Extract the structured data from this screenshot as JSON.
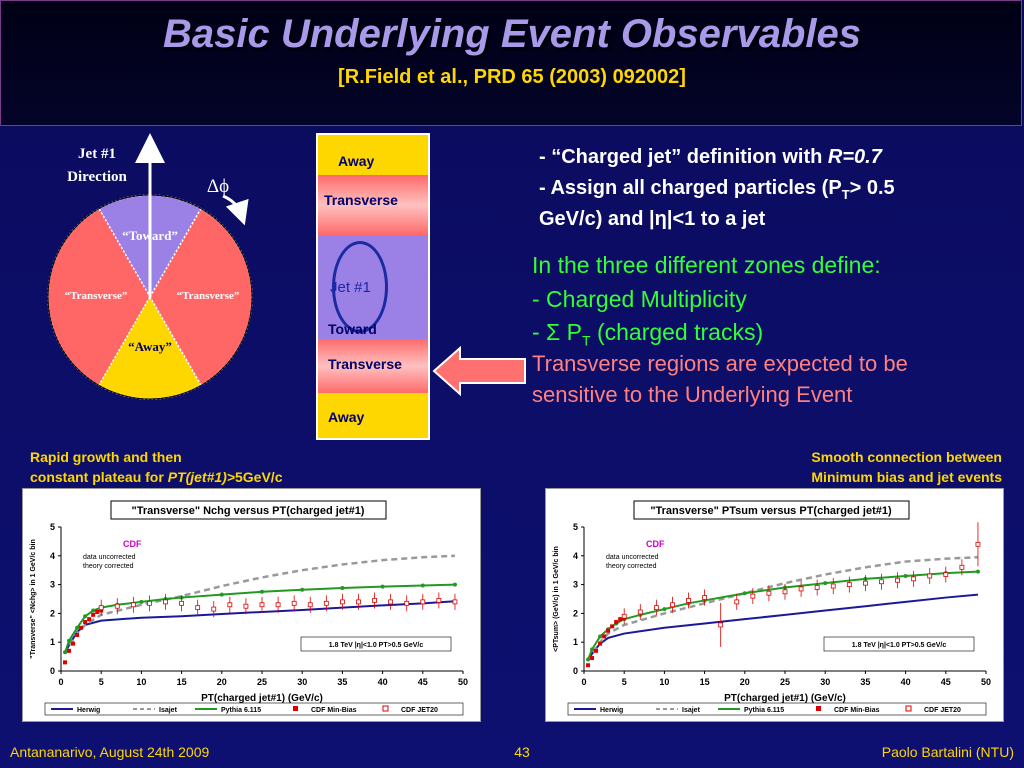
{
  "slide": {
    "title": "Basic Underlying Event Observables",
    "subtitle": "[R.Field et al., PRD 65 (2003) 092002]"
  },
  "diagram": {
    "jet_label_1": "Jet #1",
    "jet_label_2": "Direction",
    "dphi": "Δϕ",
    "toward": "“Toward”",
    "transverse_left": "“Transverse”",
    "transverse_right": "“Transverse”",
    "away": "“Away”",
    "colors": {
      "toward": "#9b80e6",
      "transverse": "#ff6666",
      "away": "#ffd700"
    }
  },
  "zones": {
    "away_top": "Away",
    "transverse_top": "Transverse",
    "jet": "Jet #1",
    "toward": "Toward",
    "transverse_bottom": "Transverse",
    "away_bottom": "Away"
  },
  "bullets": {
    "b1_prefix": "- “Charged jet” definition with ",
    "b1_italic": "R=0.7",
    "b2_line1_a": "- Assign all charged particles (P",
    "b2_line1_sub": "T",
    "b2_line1_b": "> 0.5",
    "b2_line2": "GeV/c) and |η|<1  to a jet"
  },
  "zones_text": {
    "line1": "In the three different zones define:",
    "line2": "- Charged Multiplicity",
    "line3_a": "- Σ P",
    "line3_sub": "T",
    "line3_b": " (charged tracks)",
    "line4": "Transverse regions are expected to be",
    "line5": "sensitive to the Underlying Event"
  },
  "captions": {
    "left_1": "Rapid growth and then",
    "left_2a": "constant plateau for ",
    "left_2b": "PT(jet#1)>",
    "left_2c": "5GeV/c",
    "right_1": "Smooth connection between",
    "right_2": "Minimum bias and jet events"
  },
  "footer": {
    "left": "Antananarivo, August 24th 2009",
    "page": "43",
    "right": "Paolo Bartalini (NTU)"
  },
  "chart_data": [
    {
      "type": "line",
      "title": "\"Transverse\" Nchg versus PT(charged jet#1)",
      "xlabel": "PT(charged jet#1)  (GeV/c)",
      "ylabel": "\"Transverse\" <Nchg> in 1 GeV/c bin",
      "xlim": [
        0,
        50
      ],
      "ylim": [
        0,
        5
      ],
      "xticks": [
        0,
        5,
        10,
        15,
        20,
        25,
        30,
        35,
        40,
        45,
        50
      ],
      "yticks": [
        0,
        1,
        2,
        3,
        4,
        5
      ],
      "annotations": [
        "CDF",
        "data uncorrected",
        "theory corrected",
        "1.8 TeV |η|<1.0 PT>0.5 GeV/c"
      ],
      "legend": "bottom",
      "series": [
        {
          "name": "Herwig",
          "color": "#1a1a99",
          "style": "solid",
          "x": [
            0.5,
            1,
            2,
            3,
            5,
            10,
            15,
            20,
            25,
            30,
            35,
            40,
            45,
            49
          ],
          "y": [
            0.6,
            0.9,
            1.35,
            1.6,
            1.75,
            1.85,
            1.9,
            1.98,
            2.05,
            2.12,
            2.2,
            2.28,
            2.35,
            2.42
          ]
        },
        {
          "name": "Isajet",
          "color": "#999999",
          "style": "dashed",
          "x": [
            0.5,
            1,
            2,
            3,
            5,
            10,
            15,
            20,
            25,
            30,
            35,
            40,
            45,
            49
          ],
          "y": [
            0.6,
            0.85,
            1.3,
            1.6,
            1.95,
            2.3,
            2.6,
            2.95,
            3.25,
            3.5,
            3.7,
            3.85,
            3.95,
            4.0
          ]
        },
        {
          "name": "Pythia 6.115",
          "color": "#229922",
          "style": "solid-dots",
          "x": [
            0.5,
            1,
            2,
            3,
            4,
            5,
            7,
            10,
            13,
            15,
            20,
            25,
            30,
            35,
            40,
            45,
            49
          ],
          "y": [
            0.65,
            1.05,
            1.5,
            1.9,
            2.1,
            2.2,
            2.3,
            2.4,
            2.5,
            2.55,
            2.65,
            2.75,
            2.82,
            2.88,
            2.93,
            2.97,
            3.0
          ]
        },
        {
          "name": "CDF Min-Bias",
          "color": "#dd0000",
          "style": "filled-square",
          "x": [
            0.5,
            1,
            1.5,
            2,
            2.5,
            3,
            3.5,
            4,
            4.5,
            5
          ],
          "y": [
            0.3,
            0.7,
            0.95,
            1.25,
            1.5,
            1.7,
            1.8,
            1.95,
            2.05,
            2.1
          ]
        },
        {
          "name": "CDF JET20",
          "color": "#dd0000",
          "style": "open-square",
          "x": [
            5,
            7,
            9,
            11,
            13,
            15,
            17,
            19,
            21,
            23,
            25,
            27,
            29,
            31,
            33,
            35,
            37,
            39,
            41,
            43,
            45,
            47,
            49
          ],
          "y": [
            2.2,
            2.25,
            2.3,
            2.35,
            2.4,
            2.35,
            2.2,
            2.15,
            2.3,
            2.25,
            2.3,
            2.3,
            2.35,
            2.3,
            2.35,
            2.4,
            2.4,
            2.45,
            2.4,
            2.35,
            2.4,
            2.45,
            2.4
          ]
        }
      ]
    },
    {
      "type": "line",
      "title": "\"Transverse\" PTsum versus PT(charged jet#1)",
      "xlabel": "PT(charged jet#1)  (GeV/c)",
      "ylabel": "<PTsum> (GeV/c) in 1 GeV/c bin",
      "xlim": [
        0,
        50
      ],
      "ylim": [
        0,
        5
      ],
      "xticks": [
        0,
        5,
        10,
        15,
        20,
        25,
        30,
        35,
        40,
        45,
        50
      ],
      "yticks": [
        0,
        1,
        2,
        3,
        4,
        5
      ],
      "annotations": [
        "CDF",
        "data uncorrected",
        "theory corrected",
        "1.8 TeV |η|<1.0 PT>0.5 GeV/c"
      ],
      "legend": "bottom",
      "series": [
        {
          "name": "Herwig",
          "color": "#1a1a99",
          "style": "solid",
          "x": [
            0.5,
            1,
            2,
            3,
            5,
            10,
            15,
            20,
            25,
            30,
            35,
            40,
            45,
            49
          ],
          "y": [
            0.35,
            0.6,
            0.95,
            1.15,
            1.3,
            1.5,
            1.65,
            1.8,
            1.95,
            2.1,
            2.25,
            2.4,
            2.55,
            2.65
          ]
        },
        {
          "name": "Isajet",
          "color": "#999999",
          "style": "dashed",
          "x": [
            0.5,
            1,
            2,
            3,
            5,
            10,
            15,
            20,
            25,
            30,
            35,
            40,
            45,
            49
          ],
          "y": [
            0.35,
            0.6,
            1.0,
            1.3,
            1.6,
            2.0,
            2.35,
            2.7,
            3.05,
            3.35,
            3.6,
            3.8,
            3.9,
            3.95
          ]
        },
        {
          "name": "Pythia 6.115",
          "color": "#229922",
          "style": "solid-dots",
          "x": [
            0.5,
            1,
            2,
            3,
            4,
            5,
            7,
            10,
            13,
            15,
            20,
            25,
            30,
            35,
            40,
            45,
            49
          ],
          "y": [
            0.4,
            0.75,
            1.2,
            1.45,
            1.65,
            1.8,
            1.95,
            2.15,
            2.35,
            2.45,
            2.7,
            2.9,
            3.05,
            3.2,
            3.3,
            3.4,
            3.45
          ]
        },
        {
          "name": "CDF Min-Bias",
          "color": "#dd0000",
          "style": "filled-square",
          "x": [
            0.5,
            1,
            1.5,
            2,
            2.5,
            3,
            3.5,
            4,
            4.5,
            5
          ],
          "y": [
            0.2,
            0.45,
            0.7,
            0.95,
            1.2,
            1.4,
            1.55,
            1.7,
            1.8,
            1.85
          ]
        },
        {
          "name": "CDF JET20",
          "color": "#dd0000",
          "style": "open-square",
          "x": [
            5,
            7,
            9,
            11,
            13,
            15,
            17,
            19,
            21,
            23,
            25,
            27,
            29,
            31,
            33,
            35,
            37,
            39,
            41,
            43,
            45,
            47,
            49
          ],
          "y": [
            1.9,
            2.05,
            2.2,
            2.3,
            2.45,
            2.55,
            1.6,
            2.4,
            2.6,
            2.7,
            2.75,
            2.85,
            2.9,
            2.95,
            3.0,
            3.05,
            3.1,
            3.15,
            3.2,
            3.3,
            3.35,
            3.6,
            4.4
          ]
        }
      ]
    }
  ]
}
